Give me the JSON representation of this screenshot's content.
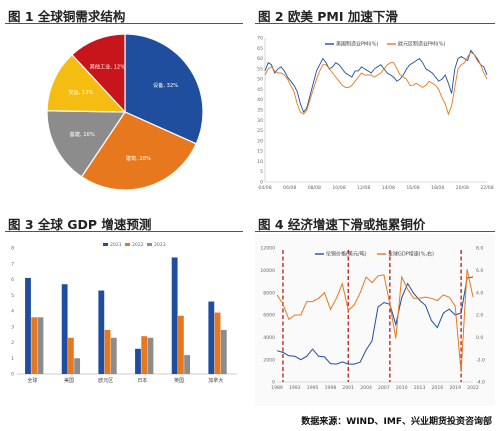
{
  "titles": {
    "fig1": "图 1  全球铜需求结构",
    "fig2": "图 2  欧美 PMI 加速下滑",
    "fig3": "图 3  全球 GDP 增速预测",
    "fig4": "图 4  经济增速下滑或拖累铜价"
  },
  "source": "数据来源：WIND、IMF、兴业期货投资咨询部",
  "colors": {
    "blue": "#1f4e9e",
    "orange": "#e8781e",
    "gray": "#8c8c8c",
    "yellow": "#f5bd12",
    "red": "#c8151b",
    "dashed_red": "#c0282a"
  },
  "chart_data": [
    {
      "id": "fig1",
      "type": "pie",
      "slices": [
        {
          "label": "设备, 32%",
          "value": 32,
          "color": "#1f4e9e"
        },
        {
          "label": "建筑, 28%",
          "value": 28,
          "color": "#e8781e"
        },
        {
          "label": "基建, 16%",
          "value": 16,
          "color": "#8c8c8c"
        },
        {
          "label": "交运, 13%",
          "value": 13,
          "color": "#f5bd12"
        },
        {
          "label": "其他工业, 12%",
          "value": 12,
          "color": "#c8151b"
        }
      ]
    },
    {
      "id": "fig2",
      "type": "line",
      "series": [
        {
          "name": "美国制造业PMI(%)",
          "color": "#1f4e9e",
          "values": [
            54,
            58,
            57,
            53,
            55,
            56,
            54,
            51,
            49,
            47,
            44,
            38,
            34,
            36,
            42,
            48,
            54,
            57,
            60,
            58,
            55,
            56,
            58,
            57,
            55,
            53,
            52,
            51,
            54,
            54,
            56,
            55,
            54,
            53,
            55,
            56,
            57,
            55,
            53,
            52,
            51,
            49,
            50,
            52,
            55,
            57,
            58,
            59,
            60,
            58,
            55,
            54,
            53,
            51,
            49,
            50,
            52,
            48,
            43,
            55,
            60,
            61,
            60,
            59,
            64,
            62,
            60,
            57,
            56,
            52
          ]
        },
        {
          "name": "欧元区制造业PMI(%)",
          "color": "#e8781e",
          "values": [
            52,
            55,
            56,
            54,
            53,
            53,
            52,
            50,
            47,
            44,
            38,
            34,
            33,
            35,
            40,
            45,
            50,
            54,
            57,
            57,
            55,
            53,
            51,
            49,
            47,
            46,
            46,
            47,
            49,
            51,
            53,
            52,
            52,
            52,
            51,
            52,
            53,
            55,
            57,
            58,
            58,
            55,
            52,
            51,
            50,
            47,
            47,
            48,
            47,
            46,
            47,
            49,
            48,
            47,
            45,
            41,
            38,
            33,
            37,
            46,
            55,
            57,
            58,
            61,
            63,
            62,
            59,
            57,
            53,
            50
          ]
        }
      ],
      "x_ticks": [
        "04/08",
        "06/08",
        "08/08",
        "10/08",
        "12/08",
        "14/08",
        "16/08",
        "18/08",
        "20/08",
        "22/08"
      ],
      "ylim": [
        0,
        70
      ],
      "y_ticks": [
        0,
        5,
        10,
        15,
        20,
        25,
        30,
        35,
        40,
        45,
        50,
        55,
        60,
        65,
        70
      ]
    },
    {
      "id": "fig3",
      "type": "bar",
      "categories": [
        "全球",
        "美国",
        "欧元区",
        "日本",
        "英国",
        "加拿大"
      ],
      "series": [
        {
          "name": "2021",
          "color": "#1f4e9e",
          "values": [
            6.1,
            5.7,
            5.3,
            1.6,
            7.4,
            4.6
          ]
        },
        {
          "name": "2022",
          "color": "#e8781e",
          "values": [
            3.6,
            2.3,
            2.8,
            2.4,
            3.7,
            3.9
          ]
        },
        {
          "name": "2023",
          "color": "#8c8c8c",
          "values": [
            3.6,
            1.0,
            2.3,
            2.3,
            1.2,
            2.8
          ]
        }
      ],
      "ylim": [
        0,
        8
      ],
      "y_ticks": [
        0,
        1,
        2,
        3,
        4,
        5,
        6,
        7,
        8
      ]
    },
    {
      "id": "fig4",
      "type": "line",
      "series": [
        {
          "name": "伦铜价格(美元/吨)",
          "axis": "left",
          "color": "#1f4e9e",
          "x": [
            1989,
            1990,
            1991,
            1992,
            1993,
            1994,
            1995,
            1996,
            1997,
            1998,
            1999,
            2000,
            2001,
            2002,
            2003,
            2004,
            2005,
            2006,
            2007,
            2008,
            2009,
            2010,
            2011,
            2012,
            2013,
            2014,
            2015,
            2016,
            2017,
            2018,
            2019,
            2020,
            2021,
            2022
          ],
          "values": [
            2800,
            2650,
            2350,
            2300,
            2000,
            2300,
            2950,
            2300,
            2250,
            1650,
            1600,
            1800,
            1600,
            1600,
            1780,
            2870,
            3680,
            6720,
            7120,
            6960,
            5150,
            7540,
            8810,
            7950,
            7330,
            6860,
            5510,
            4870,
            6170,
            6530,
            6000,
            6180,
            9320,
            9400
          ]
        },
        {
          "name": "全球GDP增速(%,右)",
          "axis": "right",
          "color": "#e8781e",
          "x": [
            1989,
            1990,
            1991,
            1992,
            1993,
            1994,
            1995,
            1996,
            1997,
            1998,
            1999,
            2000,
            2001,
            2002,
            2003,
            2004,
            2005,
            2006,
            2007,
            2008,
            2009,
            2010,
            2011,
            2012,
            2013,
            2014,
            2015,
            2016,
            2017,
            2018,
            2019,
            2020,
            2021,
            2022
          ],
          "values": [
            3.8,
            3.0,
            1.6,
            2.0,
            2.0,
            3.2,
            3.2,
            3.5,
            4.0,
            2.5,
            3.5,
            4.8,
            2.4,
            2.9,
            4.0,
            5.4,
            4.9,
            5.5,
            5.6,
            3.0,
            -0.1,
            5.4,
            4.3,
            3.5,
            3.5,
            3.6,
            3.5,
            3.3,
            3.8,
            3.6,
            2.8,
            -3.1,
            6.1,
            3.6
          ]
        }
      ],
      "events": [
        1990,
        2001,
        2008,
        2020
      ],
      "x_ticks": [
        "1989",
        "1992",
        "1995",
        "1998",
        "2001",
        "2004",
        "2007",
        "2010",
        "2013",
        "2016",
        "2019",
        "2022"
      ],
      "ylim_left": [
        0,
        12000
      ],
      "y_ticks_left": [
        0,
        2000,
        4000,
        6000,
        8000,
        10000,
        12000
      ],
      "ylim_right": [
        -4.0,
        8.0
      ],
      "y_ticks_right": [
        "-4.0",
        "-2.0",
        "0.0",
        "2.0",
        "4.0",
        "6.0",
        "8.0"
      ]
    }
  ]
}
